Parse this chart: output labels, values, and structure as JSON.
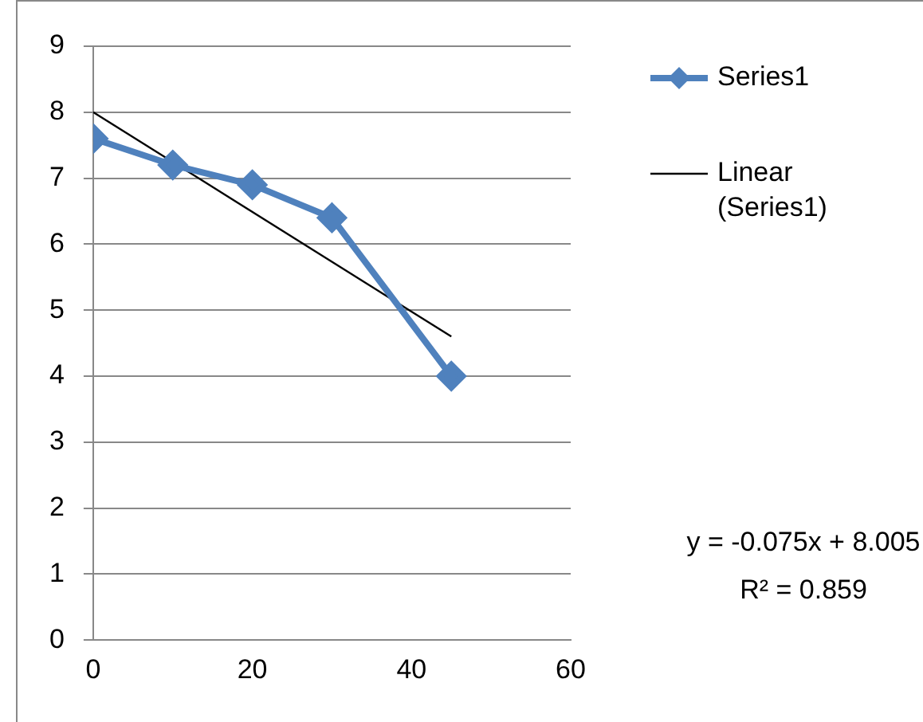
{
  "chart_data": {
    "type": "line",
    "xlim": [
      0,
      60
    ],
    "xticks": [
      0,
      20,
      40,
      60
    ],
    "ylim": [
      0,
      9
    ],
    "yticks": [
      0,
      1,
      2,
      3,
      4,
      5,
      6,
      7,
      8,
      9
    ],
    "grid": "y",
    "legend": "right",
    "series": [
      {
        "name": "Series1",
        "color": "#4f81bd",
        "x": [
          0,
          10,
          20,
          30,
          45
        ],
        "values": [
          7.6,
          7.2,
          6.9,
          6.4,
          4.0
        ],
        "marker": "diamond"
      },
      {
        "name": "Linear (Series1)",
        "color": "#000000",
        "type": "line",
        "x": [
          0,
          45
        ],
        "values": [
          8.0,
          4.6
        ],
        "marker": "none",
        "line_style": "solid"
      }
    ],
    "annotations": [
      "y = -0.075x + 8.005",
      "R² = 0.859"
    ]
  }
}
